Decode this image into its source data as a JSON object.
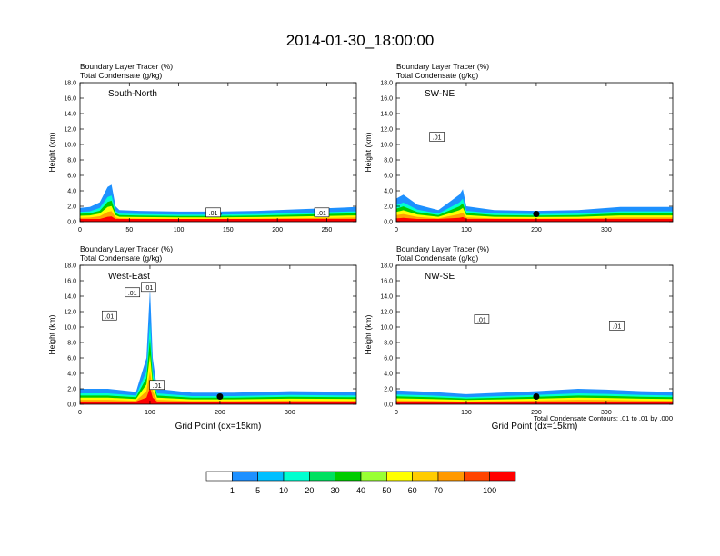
{
  "title": "2014-01-30_18:00:00",
  "footer_note": "Total Condensate Contours: .01 to .01 by .000",
  "colorbar": {
    "labels": [
      "1",
      "5",
      "10",
      "20",
      "30",
      "40",
      "50",
      "60",
      "70",
      "100"
    ],
    "colors": [
      "#ffffff",
      "#1e90ff",
      "#00bfff",
      "#00ffd0",
      "#00e060",
      "#00cc00",
      "#99ff33",
      "#ffff00",
      "#ffcc00",
      "#ff9900",
      "#ff4500",
      "#ff0000"
    ]
  },
  "chart_data": [
    {
      "type": "heatmap",
      "panel_label": "South-North",
      "subtitle_1": "Boundary Layer Tracer   (%)",
      "subtitle_2": "Total Condensate   (g/kg)",
      "ylabel": "Height (km)",
      "xlabel": "",
      "xlim": [
        0,
        280
      ],
      "ylim": [
        0,
        18
      ],
      "xticks": [
        "0",
        "50",
        "100",
        "150",
        "200",
        "250"
      ],
      "xtick_values": [
        0,
        50,
        100,
        150,
        200,
        250
      ],
      "yticks": [
        "0.0",
        "2.0",
        "4.0",
        "6.0",
        "8.0",
        "10.0",
        "12.0",
        "14.0",
        "16.0",
        "18.0"
      ],
      "marker_x": 140,
      "contour_labels": [
        {
          "text": ".01",
          "x": 135,
          "y": 1.2
        },
        {
          "text": ".01",
          "x": 245,
          "y": 1.2
        }
      ],
      "boundary_layer_top_km": [
        [
          0,
          1.8
        ],
        [
          10,
          1.9
        ],
        [
          20,
          2.5
        ],
        [
          28,
          4.5
        ],
        [
          32,
          4.8
        ],
        [
          36,
          2.0
        ],
        [
          40,
          1.5
        ],
        [
          60,
          1.4
        ],
        [
          100,
          1.3
        ],
        [
          140,
          1.3
        ],
        [
          180,
          1.4
        ],
        [
          220,
          1.6
        ],
        [
          260,
          1.8
        ],
        [
          280,
          1.9
        ]
      ]
    },
    {
      "type": "heatmap",
      "panel_label": "SW-NE",
      "subtitle_1": "Boundary Layer Tracer   (%)",
      "subtitle_2": "Total Condensate   (g/kg)",
      "ylabel": "Height (km)",
      "xlabel": "",
      "xlim": [
        0,
        395
      ],
      "ylim": [
        0,
        18
      ],
      "xticks": [
        "0",
        "100",
        "200",
        "300"
      ],
      "xtick_values": [
        0,
        100,
        200,
        300
      ],
      "yticks": [
        "0.0",
        "2.0",
        "4.0",
        "6.0",
        "8.0",
        "10.0",
        "12.0",
        "14.0",
        "16.0",
        "18.0"
      ],
      "marker_x": 200,
      "contour_labels": [
        {
          "text": ".01",
          "x": 58,
          "y": 11
        }
      ],
      "boundary_layer_top_km": [
        [
          0,
          3.0
        ],
        [
          10,
          3.5
        ],
        [
          30,
          2.2
        ],
        [
          60,
          1.5
        ],
        [
          90,
          3.5
        ],
        [
          95,
          4.2
        ],
        [
          100,
          2.0
        ],
        [
          140,
          1.5
        ],
        [
          200,
          1.4
        ],
        [
          260,
          1.5
        ],
        [
          320,
          1.9
        ],
        [
          395,
          1.9
        ]
      ]
    },
    {
      "type": "heatmap",
      "panel_label": "West-East",
      "subtitle_1": "Boundary Layer Tracer   (%)",
      "subtitle_2": "Total Condensate   (g/kg)",
      "ylabel": "Height (km)",
      "xlabel": "Grid Point (dx=15km)",
      "xlim": [
        0,
        395
      ],
      "ylim": [
        0,
        18
      ],
      "xticks": [
        "0",
        "100",
        "200",
        "300"
      ],
      "xtick_values": [
        0,
        100,
        200,
        300
      ],
      "yticks": [
        "0.0",
        "2.0",
        "4.0",
        "6.0",
        "8.0",
        "10.0",
        "12.0",
        "14.0",
        "16.0",
        "18.0"
      ],
      "marker_x": 200,
      "contour_labels": [
        {
          "text": ".01",
          "x": 75,
          "y": 14.5
        },
        {
          "text": ".01",
          "x": 98,
          "y": 15.2
        },
        {
          "text": ".01",
          "x": 42,
          "y": 11.5
        },
        {
          "text": ".01",
          "x": 110,
          "y": 2.5
        }
      ],
      "boundary_layer_top_km": [
        [
          0,
          2.0
        ],
        [
          40,
          2.0
        ],
        [
          80,
          1.6
        ],
        [
          95,
          6.0
        ],
        [
          100,
          15.0
        ],
        [
          104,
          6.0
        ],
        [
          110,
          2.0
        ],
        [
          160,
          1.5
        ],
        [
          220,
          1.5
        ],
        [
          300,
          1.7
        ],
        [
          395,
          1.6
        ]
      ]
    },
    {
      "type": "heatmap",
      "panel_label": "NW-SE",
      "subtitle_1": "Boundary Layer Tracer   (%)",
      "subtitle_2": "Total Condensate   (g/kg)",
      "ylabel": "Height (km)",
      "xlabel": "Grid Point (dx=15km)",
      "xlim": [
        0,
        395
      ],
      "ylim": [
        0,
        18
      ],
      "xticks": [
        "0",
        "100",
        "200",
        "300"
      ],
      "xtick_values": [
        0,
        100,
        200,
        300
      ],
      "yticks": [
        "0.0",
        "2.0",
        "4.0",
        "6.0",
        "8.0",
        "10.0",
        "12.0",
        "14.0",
        "16.0",
        "18.0"
      ],
      "marker_x": 200,
      "contour_labels": [
        {
          "text": ".01",
          "x": 122,
          "y": 11
        },
        {
          "text": ".01",
          "x": 315,
          "y": 10.2
        }
      ],
      "boundary_layer_top_km": [
        [
          0,
          1.8
        ],
        [
          50,
          1.6
        ],
        [
          100,
          1.3
        ],
        [
          150,
          1.5
        ],
        [
          200,
          1.7
        ],
        [
          260,
          2.0
        ],
        [
          300,
          1.9
        ],
        [
          350,
          1.7
        ],
        [
          395,
          1.6
        ]
      ]
    }
  ]
}
